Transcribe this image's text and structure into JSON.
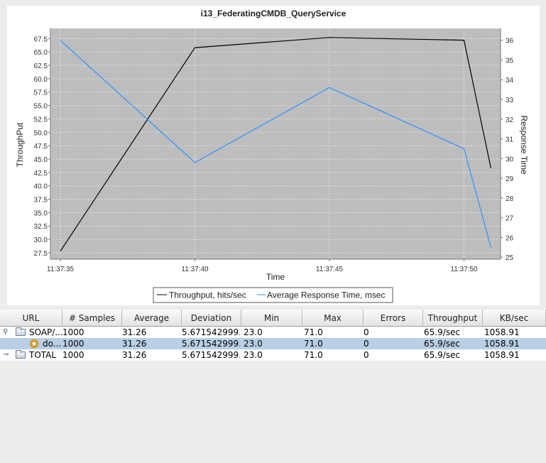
{
  "chart_data": {
    "type": "line",
    "title": "i13_FederatingCMDB_QueryService",
    "xlabel": "Time",
    "ylabel_left": "ThroughPut",
    "ylabel_right": "Response Time",
    "x_ticks": [
      "11:37:35",
      "11:37:40",
      "11:37:45",
      "11:37:50"
    ],
    "y_left_ticks": [
      "27.5",
      "30.0",
      "32.5",
      "35.0",
      "37.5",
      "40.0",
      "42.5",
      "45.0",
      "47.5",
      "50.0",
      "52.5",
      "55.0",
      "57.5",
      "60.0",
      "62.5",
      "65.0",
      "67.5"
    ],
    "y_right_ticks": [
      "25",
      "26",
      "27",
      "28",
      "29",
      "30",
      "31",
      "32",
      "33",
      "34",
      "35",
      "36"
    ],
    "ylim_left": [
      26.3,
      69.4
    ],
    "ylim_right": [
      24.9,
      36.6
    ],
    "grid": true,
    "legend_position": "bottom",
    "series": [
      {
        "name": "Throughput, hits/sec",
        "axis": "left",
        "color": "#000000",
        "x": [
          "11:37:35",
          "11:37:40",
          "11:37:45",
          "11:37:50",
          "11:37:51"
        ],
        "y": [
          27.8,
          65.8,
          67.7,
          67.2,
          43.3
        ]
      },
      {
        "name": "Average Response Time, msec",
        "axis": "right",
        "color": "#2a93ff",
        "x": [
          "11:37:35",
          "11:37:40",
          "11:37:45",
          "11:37:50",
          "11:37:51"
        ],
        "y": [
          36.0,
          29.8,
          33.6,
          30.5,
          25.5
        ]
      }
    ]
  },
  "table": {
    "columns": [
      "URL",
      "# Samples",
      "Average",
      "Deviation",
      "Min",
      "Max",
      "Errors",
      "Throughput",
      "KB/sec"
    ],
    "rows": [
      {
        "toggle": "⚲",
        "icon": "folder-icon",
        "url": "SOAP/...",
        "samples": "1000",
        "average": "31.26",
        "deviation": "5.671542999...",
        "min": "23.0",
        "max": "71.0",
        "errors": "0",
        "throughput": "65.9/sec",
        "kbsec": "1058.91"
      },
      {
        "toggle": "",
        "icon": "gear-icon",
        "url": "do...",
        "samples": "1000",
        "average": "31.26",
        "deviation": "5.671542999...",
        "min": "23.0",
        "max": "71.0",
        "errors": "0",
        "throughput": "65.9/sec",
        "kbsec": "1058.91"
      },
      {
        "toggle": "⊸",
        "icon": "folder-icon",
        "url": "TOTAL",
        "samples": "1000",
        "average": "31.26",
        "deviation": "5.671542999...",
        "min": "23.0",
        "max": "71.0",
        "errors": "0",
        "throughput": "65.9/sec",
        "kbsec": "1058.91"
      }
    ],
    "selected_row": 1,
    "colors": {
      "selected": "#b8cfe5",
      "row_bg": "#ffffff",
      "empty_bg": "#ececec"
    }
  }
}
